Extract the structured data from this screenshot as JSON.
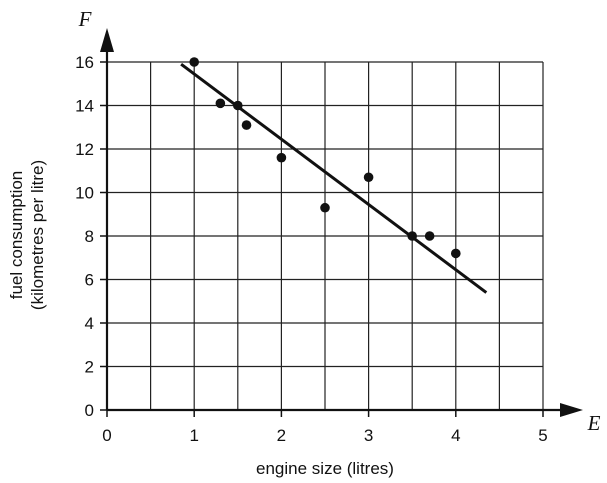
{
  "chart_data": {
    "type": "scatter",
    "xlabel": "engine size (litres)",
    "ylabel_lines": [
      "fuel consumption",
      "(kilometres per litre)"
    ],
    "x_axis_letter": "E",
    "y_axis_letter": "F",
    "xlim": [
      0,
      5
    ],
    "ylim": [
      0,
      16
    ],
    "x_ticks": [
      0,
      1,
      2,
      3,
      4,
      5
    ],
    "y_ticks": [
      0,
      2,
      4,
      6,
      8,
      10,
      12,
      14,
      16
    ],
    "grid": true,
    "points": [
      {
        "x": 1.0,
        "y": 16.0
      },
      {
        "x": 1.3,
        "y": 14.1
      },
      {
        "x": 1.5,
        "y": 14.0
      },
      {
        "x": 1.6,
        "y": 13.1
      },
      {
        "x": 2.0,
        "y": 11.6
      },
      {
        "x": 2.5,
        "y": 9.3
      },
      {
        "x": 3.0,
        "y": 10.7
      },
      {
        "x": 3.5,
        "y": 8.0
      },
      {
        "x": 3.7,
        "y": 8.0
      },
      {
        "x": 4.0,
        "y": 7.2
      }
    ],
    "line_of_best_fit": {
      "x1": 0.85,
      "y1": 15.9,
      "x2": 4.35,
      "y2": 5.4
    }
  }
}
